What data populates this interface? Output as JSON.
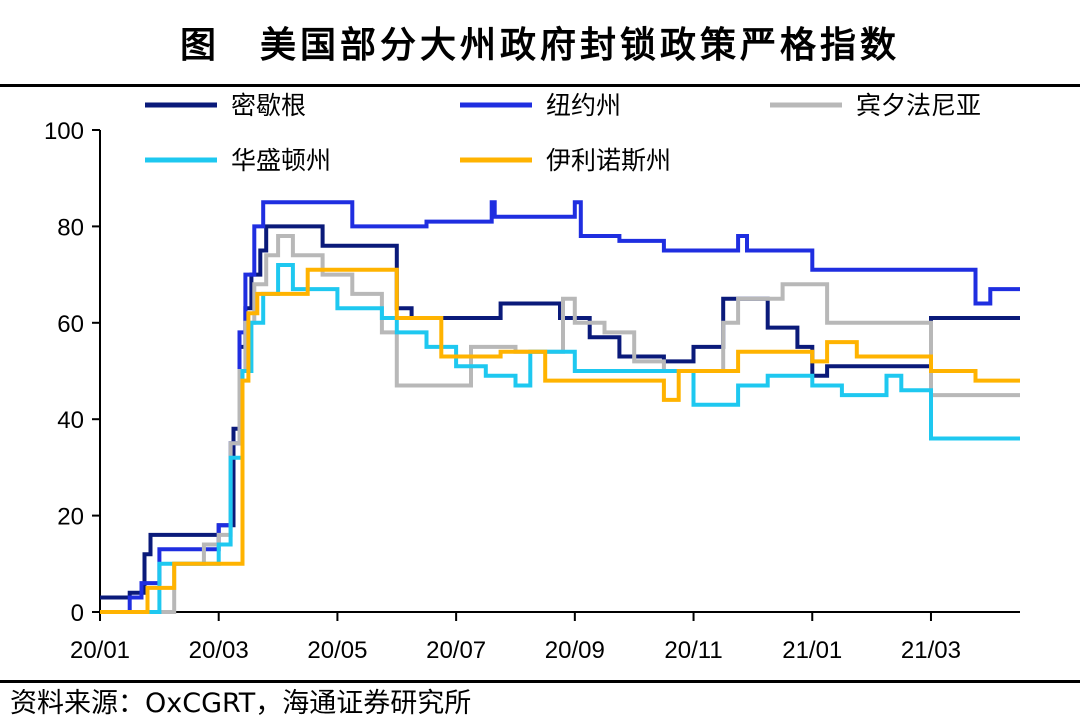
{
  "title": "图　美国部分大州政府封锁政策严格指数",
  "source": "资料来源：OxCGRT，海通证券研究所",
  "chart_data": {
    "type": "line",
    "ylim": [
      0,
      100
    ],
    "yticks": [
      0,
      20,
      40,
      60,
      80,
      100
    ],
    "x_range": [
      0,
      15.5
    ],
    "xticks": [
      {
        "pos": 0,
        "label": "20/01"
      },
      {
        "pos": 2,
        "label": "20/03"
      },
      {
        "pos": 4,
        "label": "20/05"
      },
      {
        "pos": 6,
        "label": "20/07"
      },
      {
        "pos": 8,
        "label": "20/09"
      },
      {
        "pos": 10,
        "label": "20/11"
      },
      {
        "pos": 12,
        "label": "21/01"
      },
      {
        "pos": 14,
        "label": "21/03"
      }
    ],
    "series": [
      {
        "name": "密歇根",
        "color": "#0a1a7a",
        "points": [
          [
            0,
            3
          ],
          [
            0.5,
            3
          ],
          [
            0.5,
            4
          ],
          [
            0.75,
            4
          ],
          [
            0.75,
            12
          ],
          [
            0.85,
            12
          ],
          [
            0.85,
            16
          ],
          [
            2,
            16
          ],
          [
            2,
            18
          ],
          [
            2.25,
            18
          ],
          [
            2.25,
            38
          ],
          [
            2.35,
            38
          ],
          [
            2.35,
            55
          ],
          [
            2.45,
            55
          ],
          [
            2.45,
            63
          ],
          [
            2.55,
            63
          ],
          [
            2.55,
            70
          ],
          [
            2.7,
            70
          ],
          [
            2.7,
            75
          ],
          [
            2.8,
            75
          ],
          [
            2.8,
            80
          ],
          [
            3.75,
            80
          ],
          [
            3.75,
            76
          ],
          [
            5,
            76
          ],
          [
            5,
            63
          ],
          [
            5.25,
            63
          ],
          [
            5.25,
            61
          ],
          [
            6.75,
            61
          ],
          [
            6.75,
            64
          ],
          [
            7.75,
            64
          ],
          [
            7.75,
            61
          ],
          [
            8.25,
            61
          ],
          [
            8.25,
            57
          ],
          [
            8.75,
            57
          ],
          [
            8.75,
            53
          ],
          [
            9.5,
            53
          ],
          [
            9.5,
            52
          ],
          [
            10,
            52
          ],
          [
            10,
            55
          ],
          [
            10.5,
            55
          ],
          [
            10.5,
            65
          ],
          [
            11.25,
            65
          ],
          [
            11.25,
            59
          ],
          [
            11.75,
            59
          ],
          [
            11.75,
            55
          ],
          [
            12,
            55
          ],
          [
            12,
            49
          ],
          [
            12.25,
            49
          ],
          [
            12.25,
            51
          ],
          [
            14,
            51
          ],
          [
            14,
            61
          ],
          [
            15.5,
            61
          ]
        ]
      },
      {
        "name": "纽约州",
        "color": "#1f2ee0",
        "points": [
          [
            0,
            0
          ],
          [
            0.5,
            0
          ],
          [
            0.5,
            3
          ],
          [
            0.7,
            3
          ],
          [
            0.7,
            6
          ],
          [
            1,
            6
          ],
          [
            1,
            13
          ],
          [
            2,
            13
          ],
          [
            2,
            18
          ],
          [
            2.2,
            18
          ],
          [
            2.2,
            35
          ],
          [
            2.35,
            35
          ],
          [
            2.35,
            58
          ],
          [
            2.45,
            58
          ],
          [
            2.45,
            70
          ],
          [
            2.6,
            70
          ],
          [
            2.6,
            80
          ],
          [
            2.75,
            80
          ],
          [
            2.75,
            85
          ],
          [
            4.25,
            85
          ],
          [
            4.25,
            80
          ],
          [
            5.5,
            80
          ],
          [
            5.5,
            81
          ],
          [
            6.6,
            81
          ],
          [
            6.6,
            85
          ],
          [
            6.65,
            85
          ],
          [
            6.65,
            82
          ],
          [
            8,
            82
          ],
          [
            8,
            85
          ],
          [
            8.1,
            85
          ],
          [
            8.1,
            78
          ],
          [
            8.75,
            78
          ],
          [
            8.75,
            77
          ],
          [
            9.5,
            77
          ],
          [
            9.5,
            75
          ],
          [
            10.75,
            75
          ],
          [
            10.75,
            78
          ],
          [
            10.9,
            78
          ],
          [
            10.9,
            75
          ],
          [
            12,
            75
          ],
          [
            12,
            71
          ],
          [
            14.75,
            71
          ],
          [
            14.75,
            64
          ],
          [
            15,
            64
          ],
          [
            15,
            67
          ],
          [
            15.5,
            67
          ]
        ]
      },
      {
        "name": "宾夕法尼亚",
        "color": "#b8b8b8",
        "points": [
          [
            0,
            0
          ],
          [
            1.25,
            0
          ],
          [
            1.25,
            10
          ],
          [
            1.75,
            10
          ],
          [
            1.75,
            14
          ],
          [
            2,
            14
          ],
          [
            2,
            16
          ],
          [
            2.2,
            16
          ],
          [
            2.2,
            35
          ],
          [
            2.35,
            35
          ],
          [
            2.35,
            50
          ],
          [
            2.45,
            50
          ],
          [
            2.45,
            60
          ],
          [
            2.6,
            60
          ],
          [
            2.6,
            68
          ],
          [
            2.8,
            68
          ],
          [
            2.8,
            74
          ],
          [
            3,
            74
          ],
          [
            3,
            78
          ],
          [
            3.25,
            78
          ],
          [
            3.25,
            74
          ],
          [
            3.75,
            74
          ],
          [
            3.75,
            70
          ],
          [
            4.25,
            70
          ],
          [
            4.25,
            66
          ],
          [
            4.75,
            66
          ],
          [
            4.75,
            58
          ],
          [
            5,
            58
          ],
          [
            5,
            47
          ],
          [
            5.5,
            47
          ],
          [
            5.5,
            47
          ],
          [
            6.25,
            47
          ],
          [
            6.25,
            55
          ],
          [
            7,
            55
          ],
          [
            7,
            54
          ],
          [
            7.8,
            54
          ],
          [
            7.8,
            65
          ],
          [
            8,
            65
          ],
          [
            8,
            60
          ],
          [
            8.5,
            60
          ],
          [
            8.5,
            58
          ],
          [
            9,
            58
          ],
          [
            9,
            52
          ],
          [
            9.5,
            52
          ],
          [
            9.5,
            50
          ],
          [
            10.5,
            50
          ],
          [
            10.5,
            60
          ],
          [
            10.75,
            60
          ],
          [
            10.75,
            65
          ],
          [
            11.5,
            65
          ],
          [
            11.5,
            68
          ],
          [
            12.25,
            68
          ],
          [
            12.25,
            60
          ],
          [
            14,
            60
          ],
          [
            14,
            45
          ],
          [
            15.5,
            45
          ]
        ]
      },
      {
        "name": "华盛顿州",
        "color": "#1ec8f0",
        "points": [
          [
            0,
            0
          ],
          [
            1,
            0
          ],
          [
            1,
            10
          ],
          [
            1.25,
            10
          ],
          [
            1.25,
            10
          ],
          [
            2,
            10
          ],
          [
            2,
            14
          ],
          [
            2.2,
            14
          ],
          [
            2.2,
            32
          ],
          [
            2.4,
            32
          ],
          [
            2.4,
            50
          ],
          [
            2.55,
            50
          ],
          [
            2.55,
            60
          ],
          [
            2.75,
            60
          ],
          [
            2.75,
            66
          ],
          [
            3,
            66
          ],
          [
            3,
            72
          ],
          [
            3.25,
            72
          ],
          [
            3.25,
            67
          ],
          [
            4,
            67
          ],
          [
            4,
            63
          ],
          [
            4.75,
            63
          ],
          [
            4.75,
            61
          ],
          [
            5,
            61
          ],
          [
            5,
            58
          ],
          [
            5.5,
            58
          ],
          [
            5.5,
            55
          ],
          [
            6,
            55
          ],
          [
            6,
            51
          ],
          [
            6.5,
            51
          ],
          [
            6.5,
            49
          ],
          [
            7,
            49
          ],
          [
            7,
            47
          ],
          [
            7.25,
            47
          ],
          [
            7.25,
            54
          ],
          [
            8,
            54
          ],
          [
            8,
            50
          ],
          [
            10,
            50
          ],
          [
            10,
            43
          ],
          [
            10.75,
            43
          ],
          [
            10.75,
            47
          ],
          [
            11.25,
            47
          ],
          [
            11.25,
            49
          ],
          [
            12,
            49
          ],
          [
            12,
            47
          ],
          [
            12.5,
            47
          ],
          [
            12.5,
            45
          ],
          [
            13.25,
            45
          ],
          [
            13.25,
            49
          ],
          [
            13.5,
            49
          ],
          [
            13.5,
            46
          ],
          [
            14,
            46
          ],
          [
            14,
            36
          ],
          [
            15.5,
            36
          ]
        ]
      },
      {
        "name": "伊利诺斯州",
        "color": "#ffb300",
        "points": [
          [
            0,
            0
          ],
          [
            0.5,
            0
          ],
          [
            0.5,
            0
          ],
          [
            0.8,
            0
          ],
          [
            0.8,
            5
          ],
          [
            1.25,
            5
          ],
          [
            1.25,
            10
          ],
          [
            2,
            10
          ],
          [
            2,
            10
          ],
          [
            2.4,
            10
          ],
          [
            2.4,
            48
          ],
          [
            2.5,
            48
          ],
          [
            2.5,
            62
          ],
          [
            2.65,
            62
          ],
          [
            2.65,
            66
          ],
          [
            3.5,
            66
          ],
          [
            3.5,
            71
          ],
          [
            5,
            71
          ],
          [
            5,
            61
          ],
          [
            5.5,
            61
          ],
          [
            5.5,
            61
          ],
          [
            5.75,
            61
          ],
          [
            5.75,
            53
          ],
          [
            6.75,
            53
          ],
          [
            6.75,
            54
          ],
          [
            7.5,
            54
          ],
          [
            7.5,
            48
          ],
          [
            9.5,
            48
          ],
          [
            9.5,
            44
          ],
          [
            9.75,
            44
          ],
          [
            9.75,
            50
          ],
          [
            10.75,
            50
          ],
          [
            10.75,
            54
          ],
          [
            12,
            54
          ],
          [
            12,
            52
          ],
          [
            12.25,
            52
          ],
          [
            12.25,
            56
          ],
          [
            12.75,
            56
          ],
          [
            12.75,
            53
          ],
          [
            14,
            53
          ],
          [
            14,
            50
          ],
          [
            14.75,
            50
          ],
          [
            14.75,
            48
          ],
          [
            15.5,
            48
          ]
        ]
      }
    ],
    "legend": [
      {
        "series": 0,
        "label": "密歇根"
      },
      {
        "series": 1,
        "label": "纽约州"
      },
      {
        "series": 2,
        "label": "宾夕法尼亚"
      },
      {
        "series": 3,
        "label": "华盛顿州"
      },
      {
        "series": 4,
        "label": "伊利诺斯州"
      }
    ]
  }
}
